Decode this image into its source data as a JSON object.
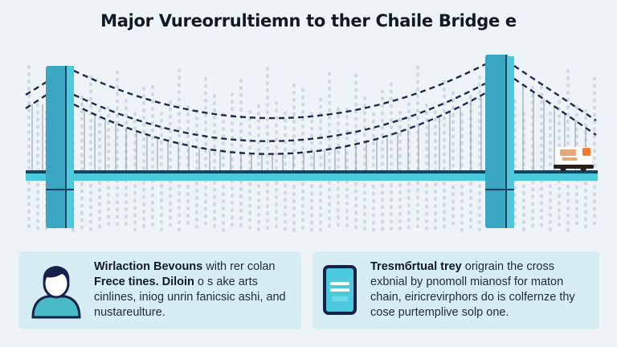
{
  "header": {
    "title": "Major Vureorrultiemn to ther Chaile Bridge e"
  },
  "illustration": {
    "subject": "suspension-bridge",
    "vehicle": "van",
    "colors": {
      "tower": "#3aa6c2",
      "tower_highlight": "#4cc9dc",
      "deck": "#4cc9dc",
      "deck_edge": "#16435e",
      "cable": "#1c2b4a",
      "background_city": "#c5d3e2",
      "background": "#eef3f7"
    }
  },
  "cards": [
    {
      "icon": "person-icon",
      "bold_text": "Wirlaction Bevouns",
      "text_line1_rest": " with rer colan",
      "bold_text2": "Frece tines. Diloin",
      "text_line2_rest": " o s ake arts",
      "text_line3": "cinlines, iniog unrin fanicsic ashi, and",
      "text_line4": "nustareulture."
    },
    {
      "icon": "tablet-icon",
      "bold_text": "Tresmбrtual trey",
      "text_line1_rest": " origrain the cross",
      "text_line2": "exbnial by pnomoll mianosf for maton",
      "text_line3": "chain, eiricrevirphors do is colfernze thy",
      "text_line4": "cose purtemplive solp one."
    }
  ],
  "colors": {
    "card_bg": "#d6eef3",
    "title": "#111a24",
    "accent": "#3aa6c2"
  }
}
